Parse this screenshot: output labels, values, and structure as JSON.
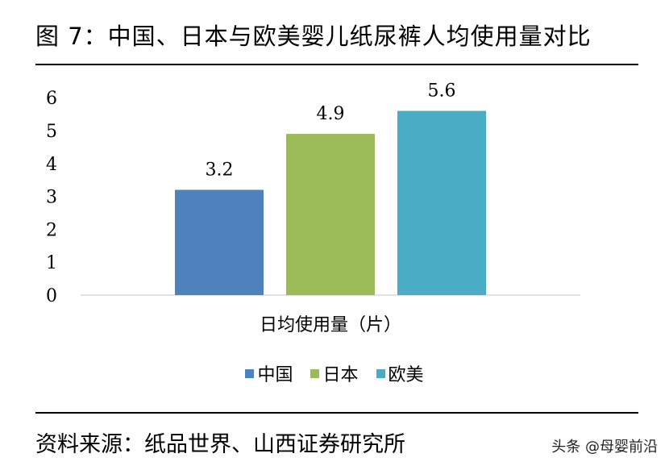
{
  "title": "图 7：中国、日本与欧美婴儿纸尿裤人均使用量对比",
  "source": "资料来源：纸品世界、山西证券研究所",
  "watermark": "头条 @母婴前沿",
  "chart_data": {
    "type": "bar",
    "categories": [
      "日均使用量（片）"
    ],
    "series": [
      {
        "name": "中国",
        "values": [
          3.2
        ],
        "color": "#4F81BD"
      },
      {
        "name": "日本",
        "values": [
          4.9
        ],
        "color": "#9BBB59"
      },
      {
        "name": "欧美",
        "values": [
          5.6
        ],
        "color": "#4BACC6"
      }
    ],
    "xlabel": "日均使用量（片）",
    "ylabel": "",
    "ylim": [
      0,
      6
    ],
    "yticks": [
      "0",
      "1",
      "2",
      "3",
      "4",
      "5",
      "6"
    ],
    "data_labels": [
      "3.2",
      "4.9",
      "5.6"
    ],
    "grid": false,
    "legend": "bottom"
  }
}
